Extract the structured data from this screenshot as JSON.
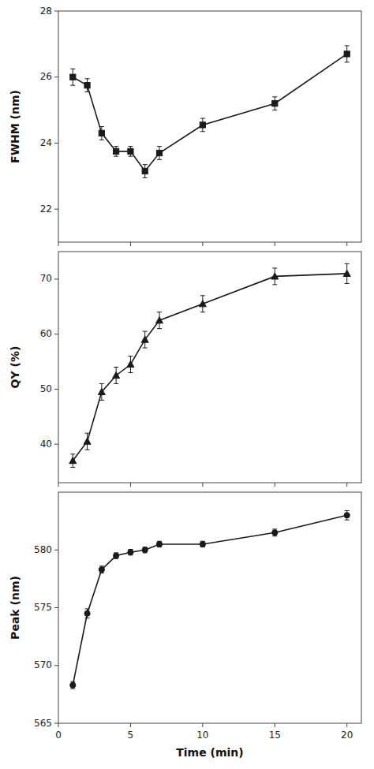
{
  "chart_data": [
    {
      "type": "line",
      "y_label": "FWHM (nm)",
      "x": [
        1,
        2,
        3,
        4,
        5,
        6,
        7,
        10,
        15,
        20
      ],
      "values": [
        26.0,
        25.75,
        24.3,
        23.75,
        23.75,
        23.15,
        23.7,
        24.55,
        25.2,
        26.7
      ],
      "errors": [
        0.25,
        0.2,
        0.2,
        0.15,
        0.15,
        0.2,
        0.2,
        0.2,
        0.2,
        0.25
      ],
      "color": "#1a1a1a",
      "marker": "square",
      "xlim": [
        0,
        21
      ],
      "xticks": [
        0,
        5,
        10,
        15,
        20
      ],
      "ylim": [
        21,
        28
      ],
      "yticks": [
        22,
        24,
        26,
        28
      ],
      "tick_labels": "y"
    },
    {
      "type": "line",
      "y_label": "QY (%)",
      "x": [
        1,
        2,
        3,
        4,
        5,
        6,
        7,
        10,
        15,
        20
      ],
      "values": [
        37.0,
        40.5,
        49.5,
        52.5,
        54.5,
        59.0,
        62.5,
        65.5,
        70.5,
        71.0
      ],
      "errors": [
        1.2,
        1.5,
        1.5,
        1.5,
        1.5,
        1.5,
        1.5,
        1.5,
        1.5,
        1.8
      ],
      "color": "#1a1a1a",
      "marker": "triangle",
      "xlim": [
        0,
        21
      ],
      "xticks": [
        0,
        5,
        10,
        15,
        20
      ],
      "ylim": [
        33,
        75
      ],
      "yticks": [
        40,
        50,
        60,
        70
      ],
      "tick_labels": "y"
    },
    {
      "type": "line",
      "y_label": "Peak (nm)",
      "x_label": "Time (min)",
      "x": [
        1,
        2,
        3,
        4,
        5,
        6,
        7,
        10,
        15,
        20
      ],
      "values": [
        568.3,
        574.5,
        578.3,
        579.5,
        579.8,
        580.0,
        580.5,
        580.5,
        581.5,
        583.0
      ],
      "errors": [
        0.3,
        0.4,
        0.3,
        0.25,
        0.25,
        0.25,
        0.25,
        0.25,
        0.3,
        0.4
      ],
      "color": "#1a1a1a",
      "marker": "circle",
      "xlim": [
        0,
        21
      ],
      "xticks": [
        0,
        5,
        10,
        15,
        20
      ],
      "ylim": [
        565,
        585
      ],
      "yticks": [
        565,
        570,
        575,
        580
      ]
    }
  ]
}
